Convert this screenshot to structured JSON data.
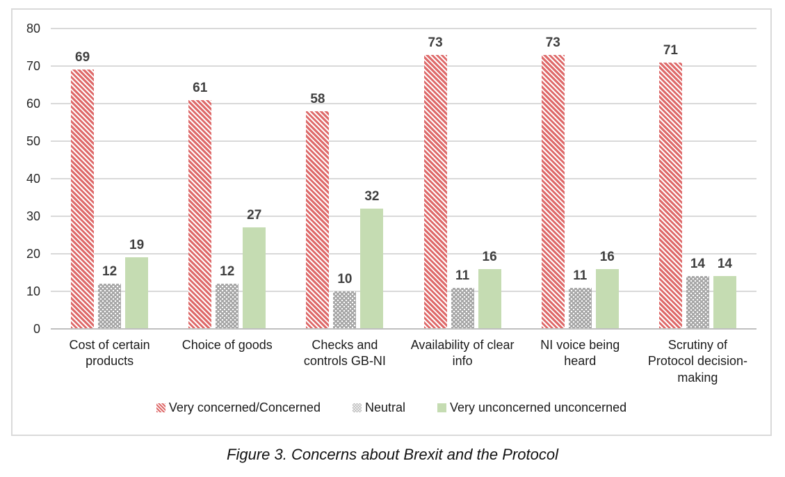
{
  "caption": "Figure 3. Concerns about Brexit and the Protocol",
  "chart_data": {
    "type": "bar",
    "title": "",
    "xlabel": "",
    "ylabel": "",
    "categories": [
      "Cost of certain products",
      "Choice of goods",
      "Checks and controls GB-NI",
      "Availability of clear info",
      "NI voice being heard",
      "Scrutiny of Protocol decision-making"
    ],
    "series": [
      {
        "key": "very-concerned-concerned",
        "name": "Very concerned/Concerned",
        "pattern": "red-hatch",
        "color": "#de6969",
        "values": [
          69,
          61,
          58,
          73,
          73,
          71
        ]
      },
      {
        "key": "neutral",
        "name": "Neutral",
        "pattern": "gray-dots",
        "color": "#a6a6a6",
        "values": [
          12,
          12,
          10,
          11,
          11,
          14
        ]
      },
      {
        "key": "very-unconcerned-unconcerned",
        "name": "Very unconcerned unconcerned",
        "pattern": "green-solid",
        "color": "#c5dcb2",
        "values": [
          19,
          27,
          32,
          16,
          16,
          14
        ]
      }
    ],
    "ylim": [
      0,
      80
    ],
    "yticks": [
      0,
      10,
      20,
      30,
      40,
      50,
      60,
      70,
      80
    ],
    "grid": true,
    "legend_position": "bottom",
    "colors": {
      "gridline": "#d9d9d9",
      "axis_line": "#bfbfbf",
      "frame_border": "#d9d9d9",
      "value_label_text": "#3f3f3f",
      "axis_text": "#262626"
    }
  }
}
